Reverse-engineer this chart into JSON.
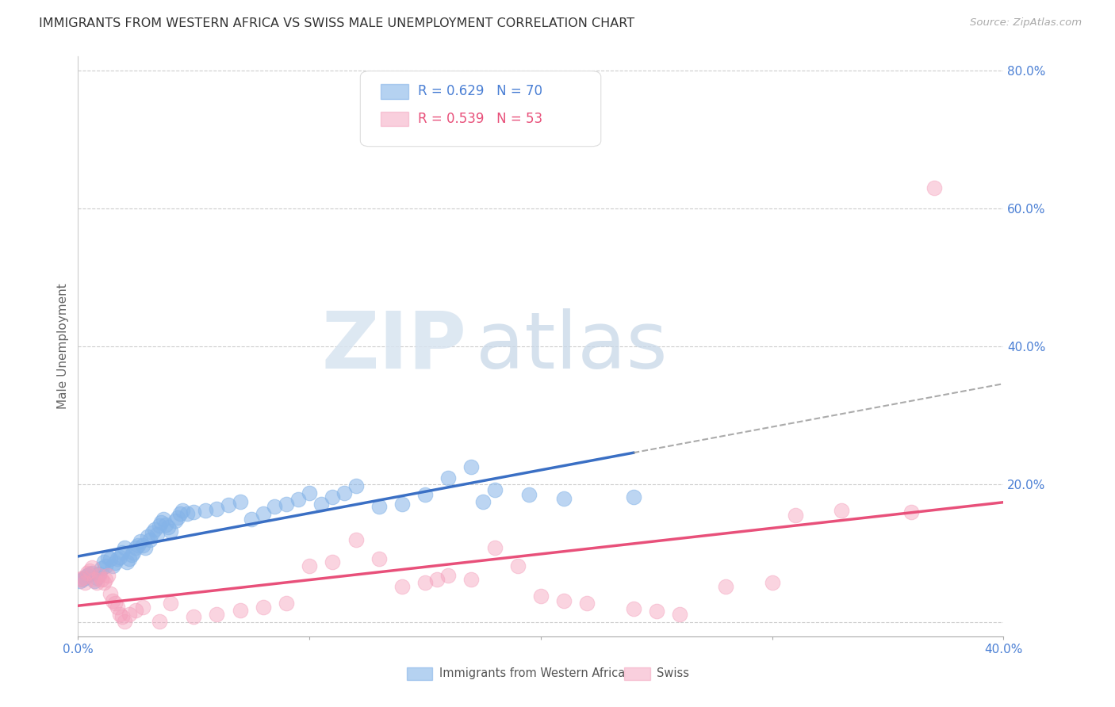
{
  "title": "IMMIGRANTS FROM WESTERN AFRICA VS SWISS MALE UNEMPLOYMENT CORRELATION CHART",
  "source": "Source: ZipAtlas.com",
  "ylabel": "Male Unemployment",
  "xlim": [
    0.0,
    0.4
  ],
  "ylim": [
    -0.02,
    0.82
  ],
  "xticks": [
    0.0,
    0.1,
    0.2,
    0.3,
    0.4
  ],
  "yticks": [
    0.0,
    0.2,
    0.4,
    0.6,
    0.8
  ],
  "xtick_labels": [
    "0.0%",
    "",
    "",
    "",
    "40.0%"
  ],
  "ytick_labels_right": [
    "80.0%",
    "60.0%",
    "40.0%",
    "20.0%",
    ""
  ],
  "legend1_R": "R = 0.629",
  "legend1_N": "N = 70",
  "legend2_R": "R = 0.539",
  "legend2_N": "N = 53",
  "color_blue": "#85b4e8",
  "color_pink": "#f4a0bc",
  "color_blue_line": "#3a6fc4",
  "color_pink_line": "#e8507a",
  "color_blue_text": "#4a7fd4",
  "color_pink_text": "#e8507a",
  "watermark_zip": "ZIP",
  "watermark_atlas": "atlas",
  "blue_scatter_x": [
    0.001,
    0.002,
    0.003,
    0.004,
    0.005,
    0.006,
    0.007,
    0.008,
    0.009,
    0.01,
    0.011,
    0.012,
    0.013,
    0.014,
    0.015,
    0.016,
    0.017,
    0.018,
    0.019,
    0.02,
    0.021,
    0.022,
    0.023,
    0.024,
    0.025,
    0.026,
    0.027,
    0.028,
    0.029,
    0.03,
    0.031,
    0.032,
    0.033,
    0.034,
    0.035,
    0.036,
    0.037,
    0.038,
    0.039,
    0.04,
    0.042,
    0.043,
    0.044,
    0.045,
    0.047,
    0.05,
    0.055,
    0.06,
    0.065,
    0.07,
    0.075,
    0.08,
    0.085,
    0.09,
    0.095,
    0.1,
    0.105,
    0.11,
    0.115,
    0.12,
    0.13,
    0.14,
    0.15,
    0.16,
    0.17,
    0.175,
    0.18,
    0.195,
    0.21,
    0.24
  ],
  "blue_scatter_y": [
    0.06,
    0.062,
    0.065,
    0.068,
    0.07,
    0.072,
    0.06,
    0.065,
    0.07,
    0.078,
    0.088,
    0.082,
    0.095,
    0.092,
    0.082,
    0.086,
    0.092,
    0.095,
    0.102,
    0.108,
    0.088,
    0.092,
    0.098,
    0.102,
    0.108,
    0.112,
    0.118,
    0.112,
    0.108,
    0.125,
    0.12,
    0.13,
    0.135,
    0.128,
    0.14,
    0.145,
    0.15,
    0.142,
    0.138,
    0.132,
    0.148,
    0.152,
    0.158,
    0.162,
    0.158,
    0.16,
    0.162,
    0.165,
    0.17,
    0.175,
    0.15,
    0.158,
    0.168,
    0.172,
    0.178,
    0.188,
    0.172,
    0.182,
    0.188,
    0.198,
    0.168,
    0.172,
    0.185,
    0.21,
    0.225,
    0.175,
    0.192,
    0.185,
    0.18,
    0.182
  ],
  "pink_scatter_x": [
    0.001,
    0.002,
    0.003,
    0.004,
    0.005,
    0.006,
    0.007,
    0.008,
    0.009,
    0.01,
    0.011,
    0.012,
    0.013,
    0.014,
    0.015,
    0.016,
    0.017,
    0.018,
    0.019,
    0.02,
    0.022,
    0.025,
    0.028,
    0.035,
    0.04,
    0.05,
    0.06,
    0.07,
    0.08,
    0.09,
    0.1,
    0.11,
    0.12,
    0.13,
    0.14,
    0.15,
    0.155,
    0.16,
    0.17,
    0.18,
    0.19,
    0.2,
    0.21,
    0.22,
    0.24,
    0.25,
    0.26,
    0.28,
    0.3,
    0.31,
    0.33,
    0.36,
    0.37
  ],
  "pink_scatter_y": [
    0.062,
    0.065,
    0.058,
    0.072,
    0.075,
    0.08,
    0.062,
    0.058,
    0.068,
    0.062,
    0.058,
    0.062,
    0.068,
    0.042,
    0.032,
    0.028,
    0.022,
    0.012,
    0.008,
    0.002,
    0.012,
    0.018,
    0.022,
    0.002,
    0.028,
    0.008,
    0.012,
    0.018,
    0.022,
    0.028,
    0.082,
    0.088,
    0.12,
    0.092,
    0.052,
    0.058,
    0.062,
    0.068,
    0.062,
    0.108,
    0.082,
    0.038,
    0.032,
    0.028,
    0.02,
    0.016,
    0.012,
    0.052,
    0.058,
    0.155,
    0.162,
    0.16,
    0.63
  ],
  "blue_line_x_end": 0.24,
  "pink_line_x_end": 0.4
}
